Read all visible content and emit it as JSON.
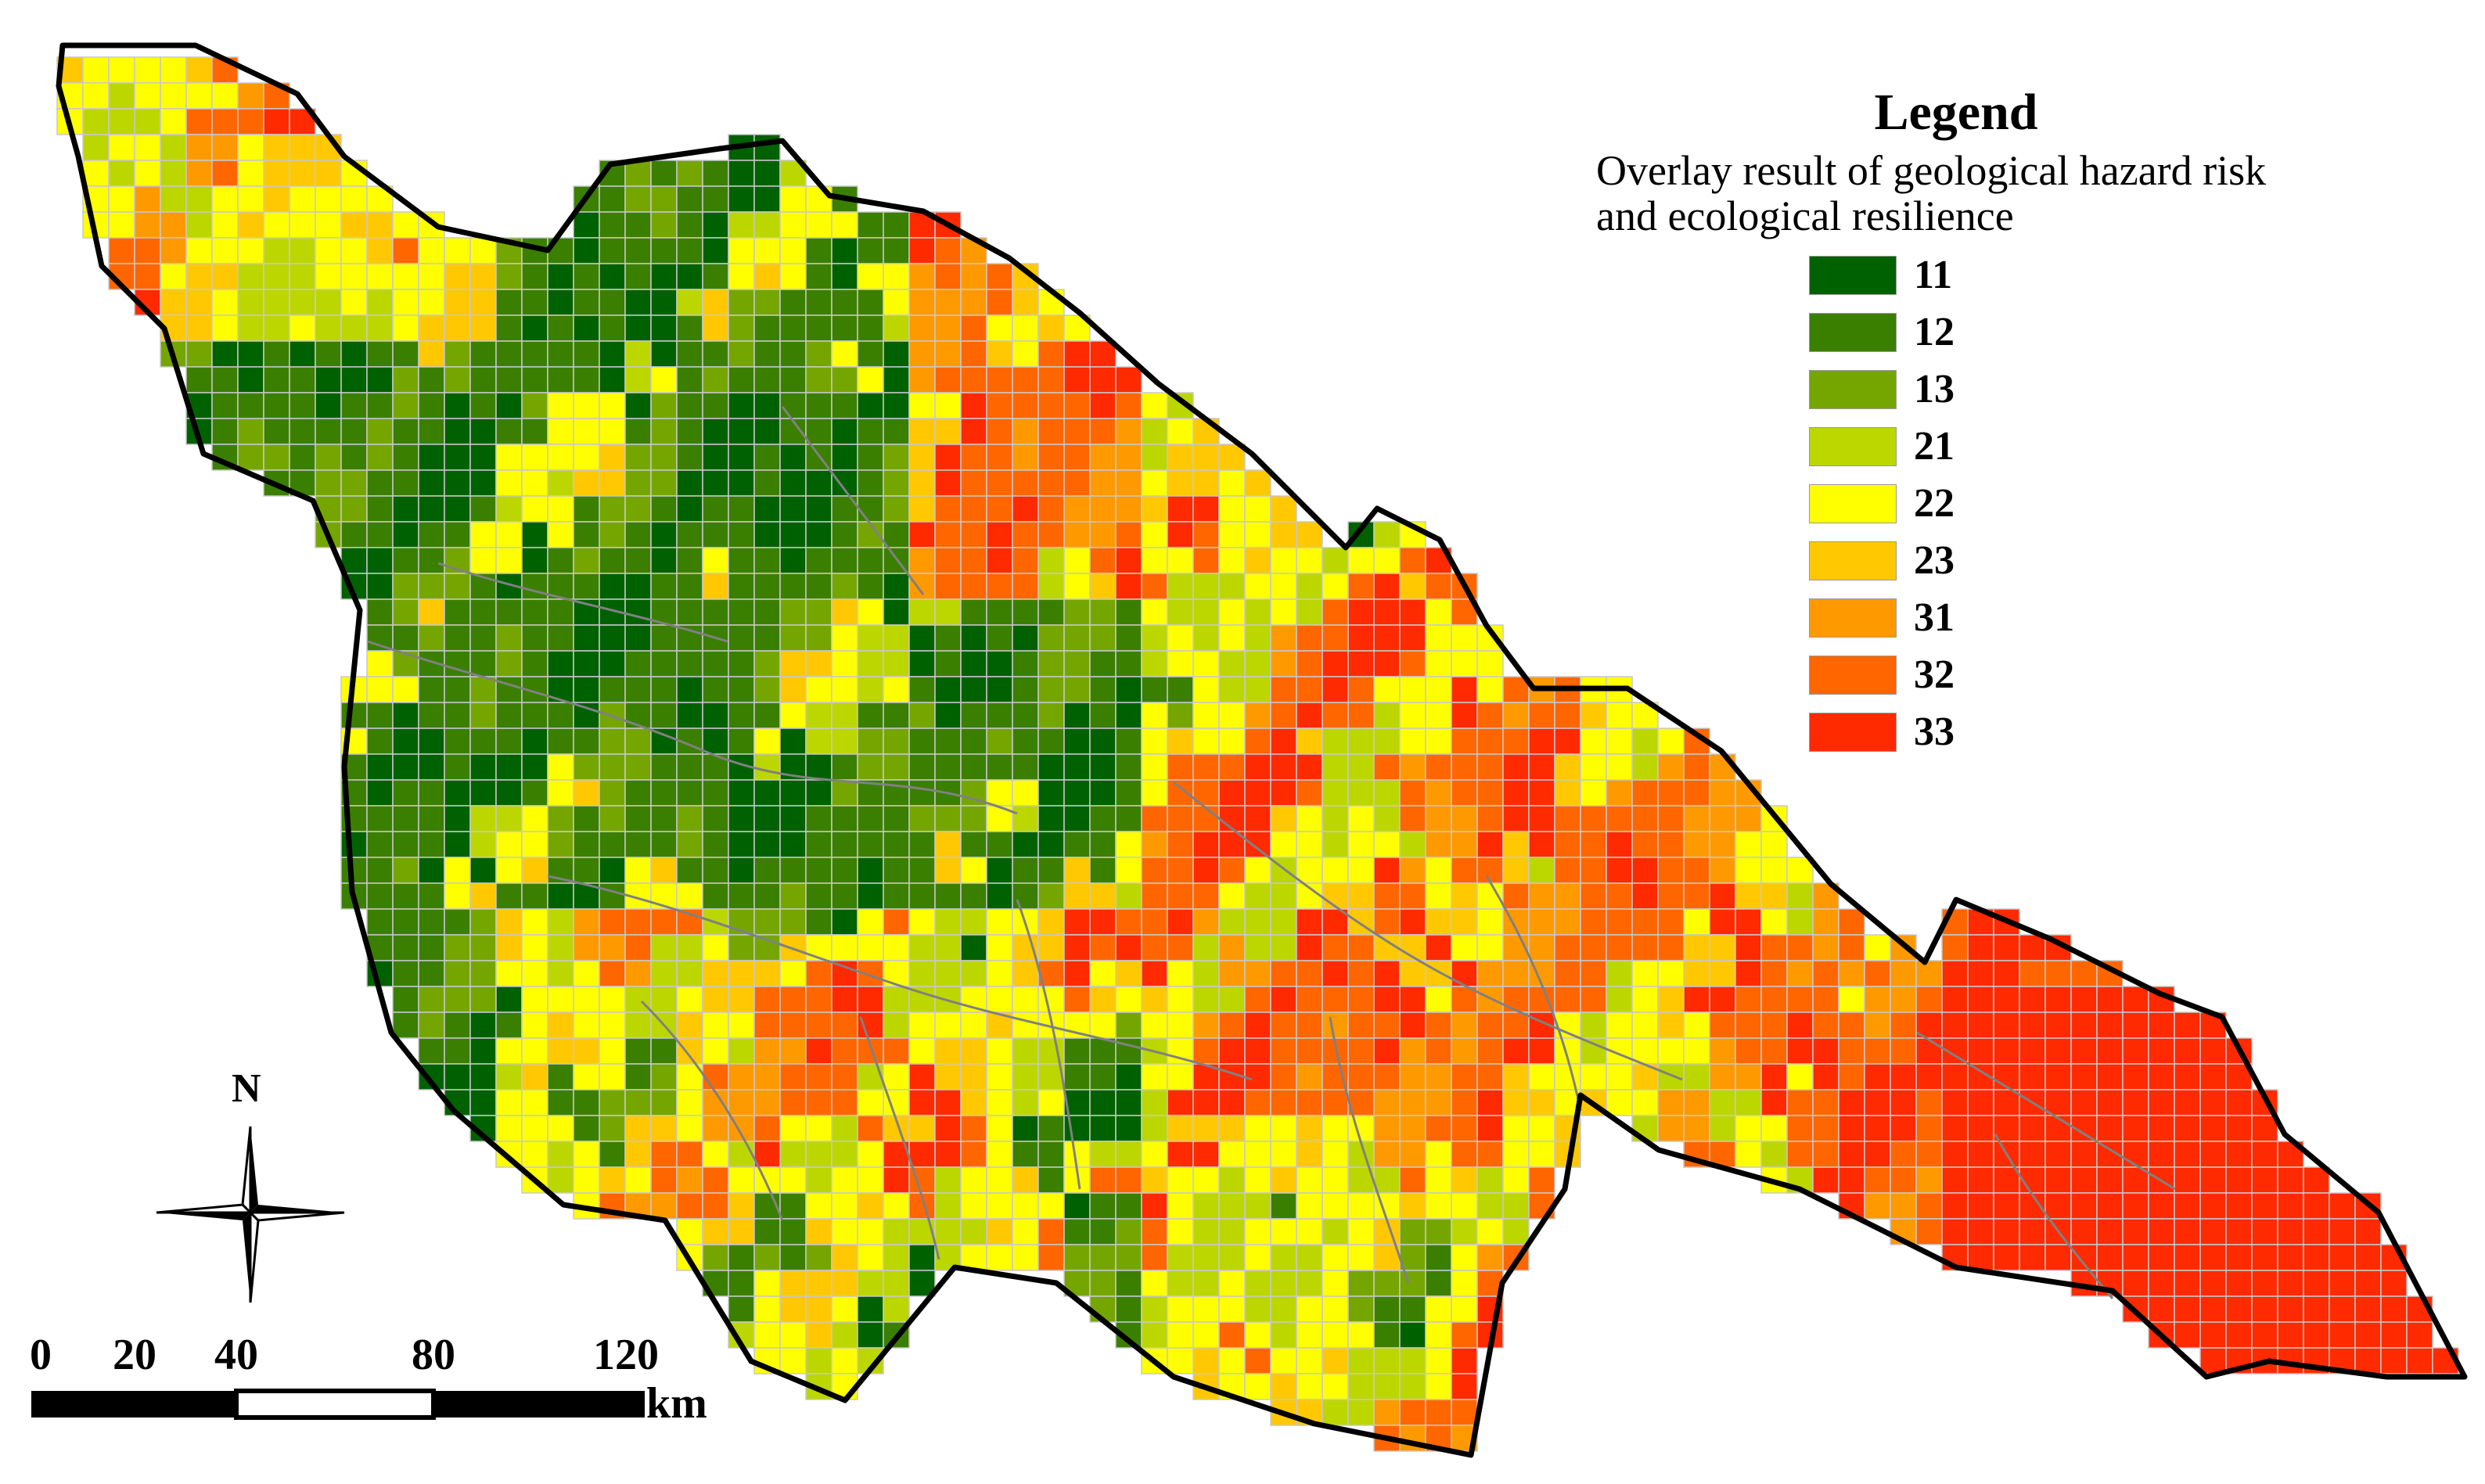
{
  "legend": {
    "title": "Legend",
    "subtitle_line1": "Overlay result of geological hazard risk",
    "subtitle_line2": "and ecological resilience",
    "items": [
      {
        "label": "11",
        "color": "#006100"
      },
      {
        "label": "12",
        "color": "#3a7f00"
      },
      {
        "label": "13",
        "color": "#75a600"
      },
      {
        "label": "21",
        "color": "#bcd600"
      },
      {
        "label": "22",
        "color": "#ffff00"
      },
      {
        "label": "23",
        "color": "#ffc800"
      },
      {
        "label": "31",
        "color": "#ff9900"
      },
      {
        "label": "32",
        "color": "#ff6600"
      },
      {
        "label": "33",
        "color": "#ff2a00"
      }
    ]
  },
  "north_arrow": {
    "label": "N"
  },
  "scale_bar": {
    "ticks": [
      "0",
      "20",
      "40",
      "80",
      "120"
    ],
    "unit": "km"
  },
  "colors": {
    "boundary": "#000000",
    "rivers": "#808080",
    "cell_border": "#c8c8c8"
  }
}
